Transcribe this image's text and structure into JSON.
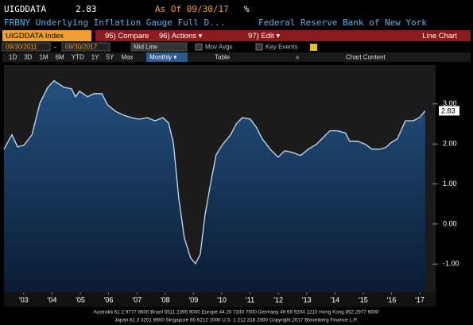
{
  "header": {
    "ticker": "UIGDDATA",
    "last_value": "2.83",
    "as_of": "As Of 09/30/17",
    "unit": "%",
    "description": "FRBNY Underlying Inflation Gauge Full D...",
    "source": "Federal Reserve Bank of New York"
  },
  "toolbar": {
    "security": "UIGDDATA Index",
    "compare": "95) Compare",
    "actions": "96) Actions ▾",
    "edit": "97) Edit ▾",
    "chart_type": "Line Chart",
    "start_date": "09/30/2011",
    "dash": "-",
    "end_date": "09/30/2017",
    "mid_line": "Mid Line",
    "mov_avgs": "Mov Avgs",
    "key_events": "Key Events",
    "periods": [
      "1D",
      "3D",
      "1M",
      "6M",
      "YTD",
      "1Y",
      "5Y",
      "Max"
    ],
    "frequency": "Monthly ▾",
    "table": "Table",
    "collapse": "«",
    "chart_content": "Chart Content"
  },
  "chart_data": {
    "type": "line",
    "color": "#c9dcf0",
    "x": [
      2002.8,
      2003.08,
      2003.28,
      2003.51,
      2003.79,
      2004.07,
      2004.35,
      2004.57,
      2004.91,
      2005.19,
      2005.33,
      2005.47,
      2005.75,
      2005.98,
      2006.26,
      2006.46,
      2006.74,
      2007.02,
      2007.3,
      2007.58,
      2007.86,
      2008.14,
      2008.42,
      2008.62,
      2008.79,
      2008.98,
      2009.18,
      2009.4,
      2009.57,
      2009.74,
      2009.91,
      2010.11,
      2010.3,
      2010.53,
      2010.81,
      2011.03,
      2011.23,
      2011.51,
      2011.71,
      2011.93,
      2012.21,
      2012.49,
      2012.72,
      2013.0,
      2013.28,
      2013.56,
      2013.84,
      2014.04,
      2014.32,
      2014.6,
      2014.88,
      2015.02,
      2015.3,
      2015.58,
      2015.81,
      2016.09,
      2016.29,
      2016.48,
      2016.71,
      2016.99,
      2017.27,
      2017.49,
      2017.69
    ],
    "values": [
      1.87,
      2.23,
      1.93,
      1.97,
      2.23,
      3.02,
      3.42,
      3.58,
      3.42,
      3.38,
      3.18,
      3.32,
      3.18,
      3.26,
      3.26,
      2.98,
      2.82,
      2.72,
      2.66,
      2.62,
      2.66,
      2.58,
      2.66,
      2.52,
      2.03,
      0.64,
      -0.36,
      -0.85,
      -0.99,
      -0.76,
      0.24,
      1.03,
      1.73,
      1.99,
      2.23,
      2.52,
      2.66,
      2.62,
      2.43,
      2.13,
      1.87,
      1.67,
      1.83,
      1.79,
      1.71,
      1.87,
      1.99,
      2.13,
      2.33,
      2.33,
      2.27,
      2.07,
      2.07,
      1.99,
      1.87,
      1.87,
      1.91,
      2.03,
      2.13,
      2.58,
      2.58,
      2.66,
      2.83
    ],
    "xlim": [
      2002.8,
      2018.06
    ],
    "xticks": [
      {
        "value": 2003.5,
        "label": "'03"
      },
      {
        "value": 2004.5,
        "label": "'04"
      },
      {
        "value": 2005.5,
        "label": "'05"
      },
      {
        "value": 2006.5,
        "label": "'06"
      },
      {
        "value": 2007.5,
        "label": "'07"
      },
      {
        "value": 2008.5,
        "label": "'08"
      },
      {
        "value": 2009.5,
        "label": "'09"
      },
      {
        "value": 2010.5,
        "label": "'10"
      },
      {
        "value": 2011.5,
        "label": "'11"
      },
      {
        "value": 2012.5,
        "label": "'12"
      },
      {
        "value": 2013.5,
        "label": "'13"
      },
      {
        "value": 2014.5,
        "label": "'14"
      },
      {
        "value": 2015.5,
        "label": "'15"
      },
      {
        "value": 2016.5,
        "label": "'16"
      },
      {
        "value": 2017.5,
        "label": "'17"
      }
    ],
    "ylim": [
      -1.71,
      3.97
    ],
    "yticks": [
      {
        "value": 3,
        "label": "3.00"
      },
      {
        "value": 2,
        "label": "2.00"
      },
      {
        "value": 1,
        "label": "1.00"
      },
      {
        "value": 0,
        "label": "0.00"
      },
      {
        "value": -1,
        "label": "-1.00"
      }
    ],
    "last_value": 2.83,
    "last_value_label": "2.83"
  },
  "footer": {
    "line1": "Australia 61 2 9777 8600 Brazil 5511 2395 9000 Europe 44 20 7330 7500 Germany 49 69 9204 1210 Hong Kong 852 2977 6000",
    "line2": "Japan 81 3 3201 8900       Singapore 65 6212 1000       U.S. 1 212 318 2000       Copyright 2017 Bloomberg Finance L.P."
  }
}
